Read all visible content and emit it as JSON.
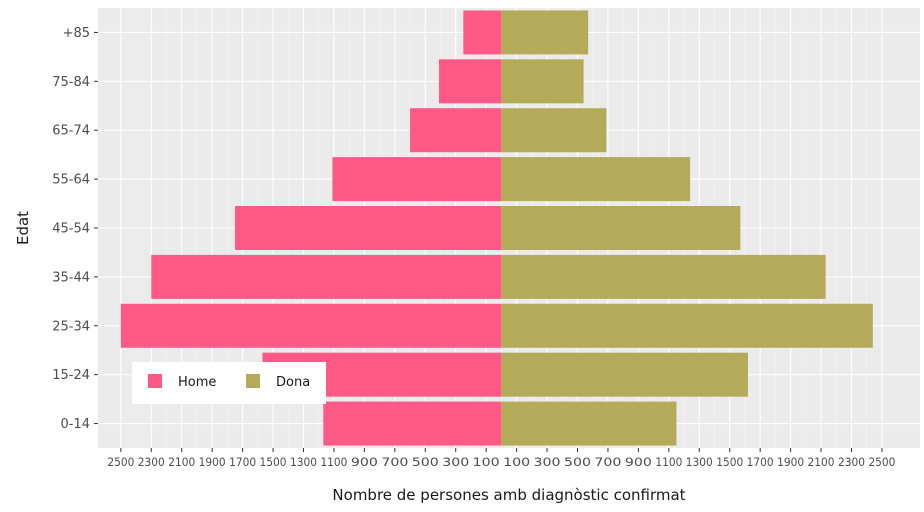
{
  "chart_data": {
    "type": "bar",
    "orientation": "horizontal",
    "layout": "population-pyramid",
    "categories": [
      "0-14",
      "15-24",
      "25-34",
      "35-44",
      "45-54",
      "55-64",
      "65-74",
      "75-84",
      "+85"
    ],
    "series": [
      {
        "name": "Home",
        "values": [
          1170,
          1570,
          2500,
          2300,
          1750,
          1110,
          600,
          410,
          250
        ]
      },
      {
        "name": "Dona",
        "values": [
          1150,
          1620,
          2440,
          2130,
          1570,
          1240,
          690,
          540,
          570
        ]
      }
    ],
    "xlabel": "Nombre de persones amb diagnòstic confirmat",
    "ylabel": "Edat",
    "xlim": [
      -2650,
      2750
    ],
    "x_tick_labels": [
      "2500",
      "2300",
      "2100",
      "1900",
      "1700",
      "1500",
      "1300",
      "1100",
      "900",
      "700",
      "500",
      "300",
      "100",
      "100",
      "300",
      "500",
      "700",
      "900",
      "1100",
      "1300",
      "1500",
      "1700",
      "1900",
      "2100",
      "2300",
      "2500"
    ],
    "grid": true,
    "legend_position": "bottom-left",
    "colors": {
      "Home": "#ff5a87",
      "Dona": "#b3aa5a",
      "panel": "#ebebeb",
      "grid": "#ffffff"
    }
  }
}
